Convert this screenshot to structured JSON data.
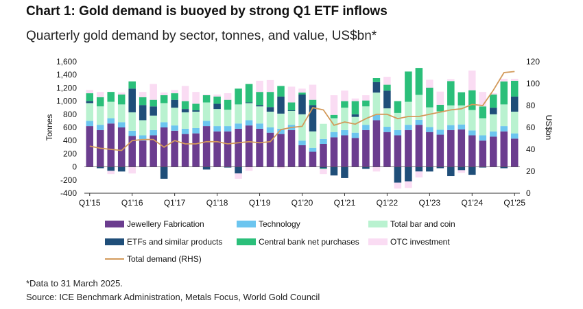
{
  "chart_data": {
    "type": "bar",
    "title": "Chart 1: Gold demand is buoyed by strong Q1 ETF inflows",
    "subtitle": "Quarterly gold demand by sector, tonnes, and value, US$bn*",
    "ylabel": "Tonnes",
    "y2label": "US$bn",
    "ylim": [
      -400,
      1600
    ],
    "y2lim": [
      0,
      120
    ],
    "yticks": [
      "1,600",
      "1,400",
      "1,200",
      "1,000",
      "800",
      "600",
      "400",
      "200",
      "0",
      "-200",
      "-400"
    ],
    "y2ticks": [
      "120",
      "100",
      "80",
      "60",
      "40",
      "20",
      "0"
    ],
    "categories": [
      "Q1'15",
      "Q2'15",
      "Q3'15",
      "Q4'15",
      "Q1'16",
      "Q2'16",
      "Q3'16",
      "Q4'16",
      "Q1'17",
      "Q2'17",
      "Q3'17",
      "Q4'17",
      "Q1'18",
      "Q2'18",
      "Q3'18",
      "Q4'18",
      "Q1'19",
      "Q2'19",
      "Q3'19",
      "Q4'19",
      "Q1'20",
      "Q2'20",
      "Q3'20",
      "Q4'20",
      "Q1'21",
      "Q2'21",
      "Q3'21",
      "Q4'21",
      "Q1'22",
      "Q2'22",
      "Q3'22",
      "Q4'22",
      "Q1'23",
      "Q2'23",
      "Q3'23",
      "Q4'23",
      "Q1'24",
      "Q2'24",
      "Q3'24",
      "Q4'24",
      "Q1'25"
    ],
    "xtick_labels": [
      "Q1'15",
      "Q1'16",
      "Q1'17",
      "Q1'18",
      "Q1'19",
      "Q1'20",
      "Q1'21",
      "Q1'22",
      "Q1'23",
      "Q1'24",
      "Q1'25"
    ],
    "series": [
      {
        "name": "Jewellery Fabrication",
        "color": "#6b3d8f",
        "axis": "left",
        "values": [
          620,
          560,
          660,
          600,
          470,
          400,
          480,
          600,
          550,
          500,
          510,
          620,
          540,
          540,
          580,
          630,
          580,
          520,
          500,
          560,
          330,
          230,
          350,
          450,
          480,
          440,
          560,
          710,
          530,
          480,
          560,
          640,
          530,
          490,
          560,
          570,
          480,
          400,
          460,
          540,
          430
        ]
      },
      {
        "name": "Technology",
        "color": "#6cc5ef",
        "axis": "left",
        "values": [
          80,
          80,
          80,
          80,
          80,
          80,
          80,
          80,
          80,
          80,
          80,
          80,
          80,
          80,
          80,
          80,
          80,
          80,
          80,
          80,
          70,
          60,
          75,
          80,
          80,
          80,
          80,
          80,
          80,
          80,
          80,
          75,
          75,
          75,
          75,
          75,
          75,
          80,
          80,
          80,
          80
        ]
      },
      {
        "name": "Total bar and coin",
        "color": "#b9f2d0",
        "axis": "left",
        "values": [
          270,
          280,
          250,
          270,
          280,
          230,
          220,
          290,
          270,
          250,
          250,
          280,
          260,
          250,
          290,
          260,
          260,
          240,
          230,
          210,
          400,
          250,
          230,
          210,
          340,
          240,
          280,
          340,
          280,
          260,
          350,
          380,
          300,
          280,
          300,
          290,
          310,
          260,
          260,
          330,
          330
        ]
      },
      {
        "name": "ETFs and similar products",
        "color": "#1f4e79",
        "axis": "left",
        "values": [
          30,
          -20,
          -60,
          -70,
          360,
          230,
          140,
          -180,
          120,
          50,
          20,
          -40,
          80,
          -10,
          -100,
          10,
          20,
          70,
          260,
          10,
          300,
          400,
          -20,
          -130,
          -170,
          40,
          -30,
          160,
          270,
          -240,
          -220,
          -70,
          -70,
          -20,
          -140,
          -50,
          -120,
          -10,
          100,
          -20,
          230
        ]
      },
      {
        "name": "Central bank net purchases",
        "color": "#2bbf7a",
        "axis": "left",
        "values": [
          120,
          140,
          150,
          150,
          110,
          120,
          100,
          120,
          100,
          120,
          100,
          110,
          110,
          150,
          240,
          280,
          200,
          230,
          160,
          120,
          30,
          80,
          -10,
          50,
          100,
          200,
          90,
          60,
          90,
          180,
          460,
          410,
          300,
          100,
          370,
          200,
          300,
          180,
          200,
          350,
          240
        ]
      },
      {
        "name": "OTC investment",
        "color": "#fadcf3",
        "axis": "left",
        "values": [
          50,
          80,
          -50,
          30,
          -100,
          80,
          240,
          40,
          50,
          230,
          180,
          10,
          30,
          100,
          -80,
          -60,
          170,
          180,
          -20,
          240,
          60,
          230,
          -80,
          300,
          160,
          40,
          80,
          -70,
          120,
          -90,
          -100,
          -90,
          120,
          200,
          30,
          -40,
          300,
          220,
          20,
          40,
          30
        ]
      },
      {
        "name": "Total demand (RHS)",
        "color": "#d39a5a",
        "axis": "right",
        "values": [
          43,
          41,
          40,
          39,
          48,
          49,
          49,
          42,
          48,
          45,
          45,
          47,
          47,
          45,
          46,
          47,
          46,
          47,
          58,
          60,
          61,
          78,
          76,
          62,
          65,
          63,
          68,
          72,
          72,
          68,
          70,
          70,
          72,
          74,
          76,
          77,
          81,
          80,
          94,
          110,
          111
        ]
      }
    ]
  },
  "legend": {
    "jewellery": "Jewellery Fabrication",
    "technology": "Technology",
    "bar_coin": "Total bar and coin",
    "etfs": "ETFs and similar products",
    "central_bank": "Central bank net purchases",
    "otc": "OTC investment",
    "total": "Total demand (RHS)"
  },
  "colors": {
    "jewellery": "#6b3d8f",
    "technology": "#6cc5ef",
    "bar_coin": "#b9f2d0",
    "etfs": "#1f4e79",
    "central_bank": "#2bbf7a",
    "otc": "#fadcf3",
    "total": "#d39a5a"
  },
  "notes": {
    "data_note": "*Data to 31 March 2025.",
    "source": "Source: ICE Benchmark Administration, Metals Focus, World Gold Council"
  }
}
